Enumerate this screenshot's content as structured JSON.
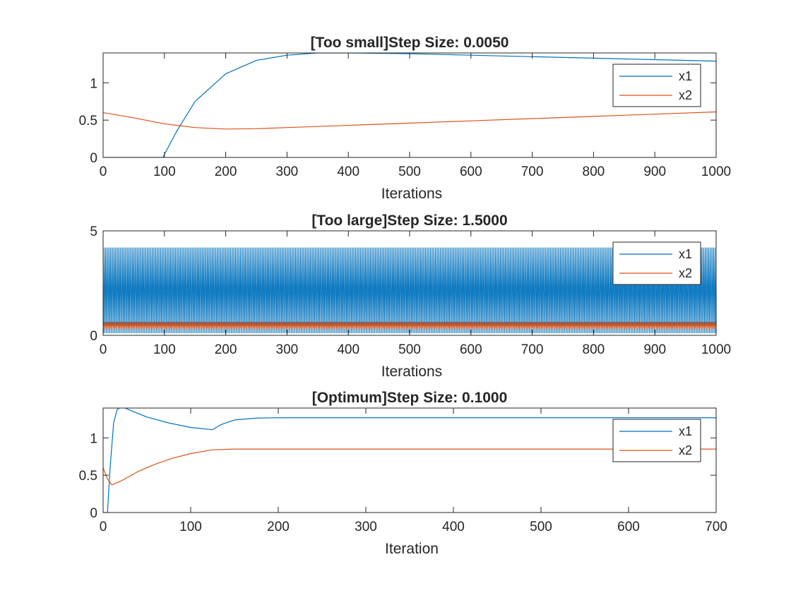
{
  "chart_data": [
    {
      "type": "line",
      "title": "[Too small]Step Size: 0.0050",
      "xlabel": "Iterations",
      "ylabel": "",
      "xlim": [
        0,
        1000
      ],
      "ylim": [
        0,
        1.4
      ],
      "xticks": [
        "0",
        "100",
        "200",
        "300",
        "400",
        "500",
        "600",
        "700",
        "800",
        "900",
        "1000"
      ],
      "yticks": [
        "0",
        "0.5",
        "1"
      ],
      "legend": "top-right",
      "grid": false,
      "series": [
        {
          "name": "x1",
          "color": "#0072BD",
          "x": [
            0,
            98,
            100,
            120,
            150,
            200,
            250,
            300,
            350,
            400,
            500,
            600,
            700,
            800,
            900,
            1000
          ],
          "y": [
            0,
            0,
            0.04,
            0.35,
            0.75,
            1.12,
            1.3,
            1.37,
            1.4,
            1.4,
            1.39,
            1.37,
            1.35,
            1.33,
            1.31,
            1.29
          ]
        },
        {
          "name": "x2",
          "color": "#D95319",
          "x": [
            0,
            50,
            100,
            150,
            200,
            250,
            300,
            400,
            500,
            600,
            700,
            800,
            900,
            1000
          ],
          "y": [
            0.6,
            0.53,
            0.45,
            0.4,
            0.38,
            0.385,
            0.4,
            0.43,
            0.46,
            0.49,
            0.52,
            0.55,
            0.58,
            0.61
          ]
        }
      ]
    },
    {
      "type": "line",
      "title": "[Too large]Step Size: 1.5000",
      "xlabel": "Iterations",
      "ylabel": "",
      "xlim": [
        0,
        1000
      ],
      "ylim": [
        0,
        5
      ],
      "xticks": [
        "0",
        "100",
        "200",
        "300",
        "400",
        "500",
        "600",
        "700",
        "800",
        "900",
        "1000"
      ],
      "yticks": [
        "0",
        "5"
      ],
      "legend": "top-right",
      "grid": false,
      "series": [
        {
          "name": "x1",
          "color": "#0072BD",
          "oscillation": {
            "from": 0,
            "to": 1000,
            "low": 0.1,
            "high": 4.2
          }
        },
        {
          "name": "x2",
          "color": "#D95319",
          "oscillation": {
            "from": 0,
            "to": 1000,
            "low": 0.3,
            "high": 0.65
          }
        }
      ]
    },
    {
      "type": "line",
      "title": "[Optimum]Step Size: 0.1000",
      "xlabel": "Iteration",
      "ylabel": "",
      "xlim": [
        0,
        700
      ],
      "ylim": [
        0,
        1.4
      ],
      "xticks": [
        "0",
        "100",
        "200",
        "300",
        "400",
        "500",
        "600",
        "700"
      ],
      "yticks": [
        "0",
        "0.5",
        "1"
      ],
      "legend": "top-right",
      "grid": false,
      "series": [
        {
          "name": "x1",
          "color": "#0072BD",
          "x": [
            0,
            3,
            5,
            8,
            12,
            16,
            20,
            25,
            35,
            50,
            75,
            100,
            125,
            135,
            150,
            175,
            200,
            250,
            300,
            700
          ],
          "y": [
            0,
            0,
            0,
            0.6,
            1.2,
            1.38,
            1.41,
            1.4,
            1.35,
            1.28,
            1.2,
            1.14,
            1.11,
            1.18,
            1.24,
            1.265,
            1.27,
            1.27,
            1.27,
            1.27
          ]
        },
        {
          "name": "x2",
          "color": "#D95319",
          "x": [
            0,
            5,
            10,
            20,
            40,
            60,
            80,
            100,
            125,
            150,
            200,
            300,
            700
          ],
          "y": [
            0.6,
            0.45,
            0.37,
            0.42,
            0.55,
            0.65,
            0.73,
            0.79,
            0.84,
            0.85,
            0.85,
            0.85,
            0.85
          ]
        }
      ]
    }
  ]
}
